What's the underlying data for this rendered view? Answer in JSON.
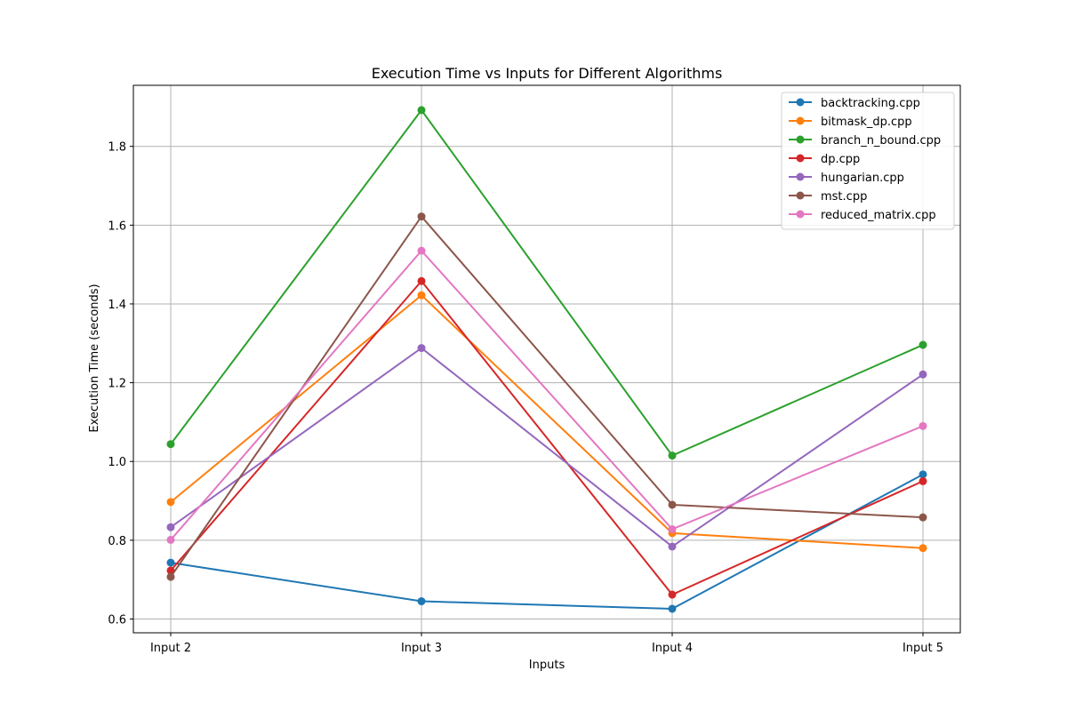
{
  "chart_data": {
    "type": "line",
    "title": "Execution Time vs Inputs for Different Algorithms",
    "xlabel": "Inputs",
    "ylabel": "Execution Time (seconds)",
    "categories": [
      "Input 2",
      "Input 3",
      "Input 4",
      "Input 5"
    ],
    "ylim": [
      0.565,
      1.955
    ],
    "yticks": [
      0.6,
      0.8,
      1.0,
      1.2,
      1.4,
      1.6,
      1.8
    ],
    "grid": true,
    "legend_position": "top-right",
    "series": [
      {
        "name": "backtracking.cpp",
        "color": "#1f77b4",
        "values": [
          0.743,
          0.645,
          0.626,
          0.967
        ]
      },
      {
        "name": "bitmask_dp.cpp",
        "color": "#ff7f0e",
        "values": [
          0.897,
          1.422,
          0.818,
          0.78
        ]
      },
      {
        "name": "branch_n_bound.cpp",
        "color": "#2ca02c",
        "values": [
          1.044,
          1.892,
          1.015,
          1.296
        ]
      },
      {
        "name": "dp.cpp",
        "color": "#d62728",
        "values": [
          0.723,
          1.458,
          0.662,
          0.95
        ]
      },
      {
        "name": "hungarian.cpp",
        "color": "#9467bd",
        "values": [
          0.833,
          1.288,
          0.784,
          1.221
        ]
      },
      {
        "name": "mst.cpp",
        "color": "#8c564b",
        "values": [
          0.707,
          1.622,
          0.89,
          0.858
        ]
      },
      {
        "name": "reduced_matrix.cpp",
        "color": "#e377c2",
        "values": [
          0.801,
          1.535,
          0.828,
          1.09
        ]
      }
    ]
  }
}
